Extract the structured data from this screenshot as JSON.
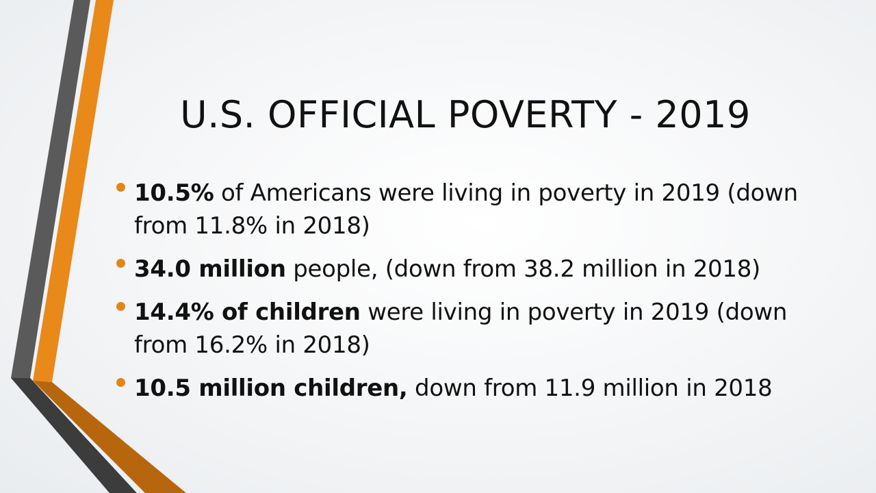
{
  "slide": {
    "title": "U.S. OFFICIAL POVERTY - 2019",
    "bullets": [
      {
        "bold": "10.5%",
        "text": " of Americans were living in poverty in 2019 (down from 11.8% in 2018)"
      },
      {
        "bold": "34.0 million",
        "text": " people, (down from 38.2 million in 2018)"
      },
      {
        "bold": "14.4% of children",
        "text": " were living in poverty in 2019 (down from 16.2% in 2018)"
      },
      {
        "bold": "10.5 million children,",
        "text": " down from 11.9 million in 2018"
      }
    ]
  },
  "theme": {
    "accent_orange": "#e8891a",
    "accent_dark_orange": "#b8660e",
    "accent_gray": "#555555",
    "accent_dark": "#3a3a3a",
    "bullet_color": "#e0871c"
  }
}
